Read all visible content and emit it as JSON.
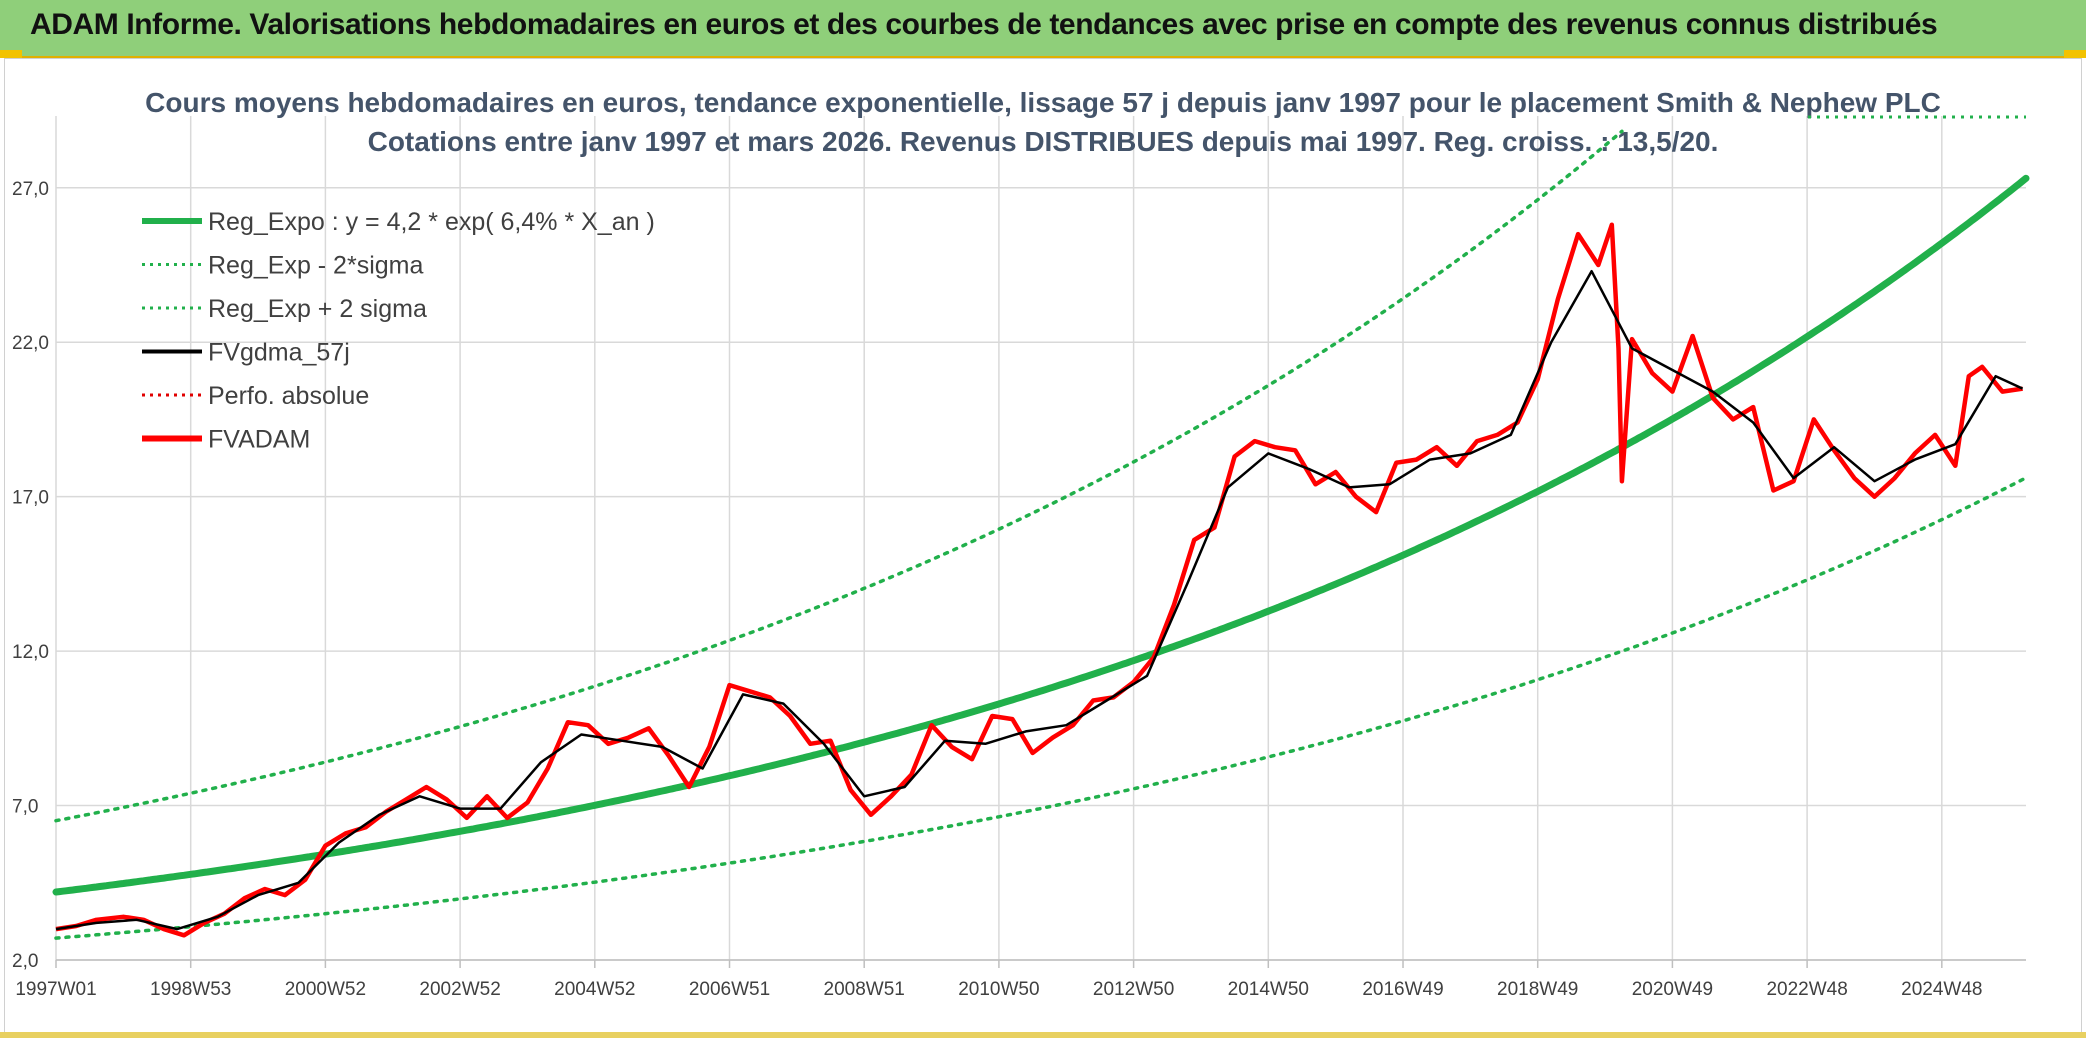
{
  "banner": {
    "title": "ADAM Informe. Valorisations hebdomadaires en euros et des courbes de tendances avec prise en compte des revenus connus distribués",
    "color": "#8fcf7a"
  },
  "chart_data": {
    "type": "line",
    "title_line1": "Cours moyens hebdomadaires en euros, tendance exponentielle, lissage 57 j depuis janv 1997 pour le placement Smith & Nephew PLC",
    "title_line2": "Cotations entre janv 1997 et mars 2026. Revenus DISTRIBUES depuis mai 1997. Reg. croiss. : 13,5/20.",
    "ylim": [
      2.0,
      29.0
    ],
    "yticks": [
      2.0,
      7.0,
      12.0,
      17.0,
      22.0,
      27.0
    ],
    "ytick_labels": [
      "2,0",
      "7,0",
      "12,0",
      "17,0",
      "22,0",
      "27,0"
    ],
    "xlim": [
      1997.0,
      2026.25
    ],
    "xtick_positions": [
      1997.0,
      1999.0,
      2001.0,
      2003.0,
      2005.0,
      2007.0,
      2009.0,
      2011.0,
      2013.0,
      2015.0,
      2017.0,
      2019.0,
      2021.0,
      2023.0,
      2025.0
    ],
    "xtick_labels": [
      "1997W01",
      "1998W53",
      "2000W52",
      "2002W52",
      "2004W52",
      "2006W51",
      "2008W51",
      "2010W50",
      "2012W50",
      "2014W50",
      "2016W49",
      "2018W49",
      "2020W49",
      "2022W48",
      "2024W48"
    ],
    "legend": [
      {
        "label": "Reg_Expo : y = 4,2 * exp( 6,4% *  X_an )",
        "color": "#21b04b",
        "style": "thick"
      },
      {
        "label": "Reg_Exp - 2*sigma",
        "color": "#21b04b",
        "style": "dotted"
      },
      {
        "label": "Reg_Exp + 2 sigma",
        "color": "#21b04b",
        "style": "dotted"
      },
      {
        "label": "FVgdma_57j",
        "color": "#000000",
        "style": "solid"
      },
      {
        "label": "Perfo. absolue",
        "color": "#e00000",
        "style": "dotted"
      },
      {
        "label": "FVADAM",
        "color": "#ff0000",
        "style": "thick"
      }
    ],
    "regression": {
      "a": 4.2,
      "rate": 0.064,
      "lower_factor": 0.645,
      "upper_factor": 1.55
    },
    "series": [
      {
        "name": "FVADAM",
        "x": [
          1997.0,
          1997.3,
          1997.6,
          1998.0,
          1998.3,
          1998.6,
          1998.9,
          1999.2,
          1999.5,
          1999.8,
          2000.1,
          2000.4,
          2000.7,
          2001.0,
          2001.3,
          2001.6,
          2001.9,
          2002.2,
          2002.5,
          2002.8,
          2003.1,
          2003.4,
          2003.7,
          2004.0,
          2004.3,
          2004.6,
          2004.9,
          2005.2,
          2005.5,
          2005.8,
          2006.1,
          2006.4,
          2006.7,
          2007.0,
          2007.3,
          2007.6,
          2007.9,
          2008.2,
          2008.5,
          2008.8,
          2009.1,
          2009.4,
          2009.7,
          2010.0,
          2010.3,
          2010.6,
          2010.9,
          2011.2,
          2011.5,
          2011.8,
          2012.1,
          2012.4,
          2012.7,
          2013.0,
          2013.3,
          2013.6,
          2013.9,
          2014.2,
          2014.5,
          2014.8,
          2015.1,
          2015.4,
          2015.7,
          2016.0,
          2016.3,
          2016.6,
          2016.9,
          2017.2,
          2017.5,
          2017.8,
          2018.1,
          2018.4,
          2018.7,
          2019.0,
          2019.3,
          2019.6,
          2019.9,
          2020.1,
          2020.2,
          2020.25,
          2020.4,
          2020.7,
          2021.0,
          2021.3,
          2021.6,
          2021.9,
          2022.2,
          2022.5,
          2022.8,
          2023.1,
          2023.4,
          2023.7,
          2024.0,
          2024.3,
          2024.6,
          2024.9,
          2025.2,
          2025.4,
          2025.6,
          2025.9,
          2026.2
        ],
        "values": [
          3.0,
          3.1,
          3.3,
          3.4,
          3.3,
          3.0,
          2.8,
          3.2,
          3.5,
          4.0,
          4.3,
          4.1,
          4.6,
          5.7,
          6.1,
          6.3,
          6.8,
          7.2,
          7.6,
          7.2,
          6.6,
          7.3,
          6.6,
          7.1,
          8.2,
          9.7,
          9.6,
          9.0,
          9.2,
          9.5,
          8.6,
          7.6,
          8.9,
          10.9,
          10.7,
          10.5,
          9.9,
          9.0,
          9.1,
          7.5,
          6.7,
          7.3,
          8.0,
          9.6,
          8.9,
          8.5,
          9.9,
          9.8,
          8.7,
          9.2,
          9.6,
          10.4,
          10.5,
          11.0,
          11.8,
          13.5,
          15.6,
          16.0,
          18.3,
          18.8,
          18.6,
          18.5,
          17.4,
          17.8,
          17.0,
          16.5,
          18.1,
          18.2,
          18.6,
          18.0,
          18.8,
          19.0,
          19.4,
          20.8,
          23.4,
          25.5,
          24.5,
          25.8,
          21.8,
          17.5,
          22.1,
          21.0,
          20.4,
          22.2,
          20.2,
          19.5,
          19.9,
          17.2,
          17.5,
          19.5,
          18.5,
          17.6,
          17.0,
          17.6,
          18.4,
          19.0,
          18.0,
          20.9,
          21.2,
          20.4,
          20.5
        ]
      },
      {
        "name": "FVgdma_57j",
        "x": [
          1997.0,
          1997.6,
          1998.2,
          1998.8,
          1999.4,
          2000.0,
          2000.6,
          2001.2,
          2001.8,
          2002.4,
          2003.0,
          2003.6,
          2004.2,
          2004.8,
          2005.4,
          2006.0,
          2006.6,
          2007.2,
          2007.8,
          2008.4,
          2009.0,
          2009.6,
          2010.2,
          2010.8,
          2011.4,
          2012.0,
          2012.6,
          2013.2,
          2013.8,
          2014.4,
          2015.0,
          2015.6,
          2016.2,
          2016.8,
          2017.4,
          2018.0,
          2018.6,
          2019.2,
          2019.8,
          2020.4,
          2021.0,
          2021.6,
          2022.2,
          2022.8,
          2023.4,
          2024.0,
          2024.6,
          2025.2,
          2025.8,
          2026.2
        ],
        "values": [
          3.0,
          3.2,
          3.3,
          3.0,
          3.4,
          4.1,
          4.5,
          5.8,
          6.7,
          7.3,
          6.9,
          6.9,
          8.4,
          9.3,
          9.1,
          8.9,
          8.2,
          10.6,
          10.3,
          9.0,
          7.3,
          7.6,
          9.1,
          9.0,
          9.4,
          9.6,
          10.4,
          11.2,
          14.2,
          17.3,
          18.4,
          17.9,
          17.3,
          17.4,
          18.2,
          18.4,
          19.0,
          22.0,
          24.3,
          21.8,
          21.1,
          20.4,
          19.4,
          17.6,
          18.6,
          17.5,
          18.2,
          18.7,
          20.9,
          20.5
        ]
      }
    ]
  }
}
